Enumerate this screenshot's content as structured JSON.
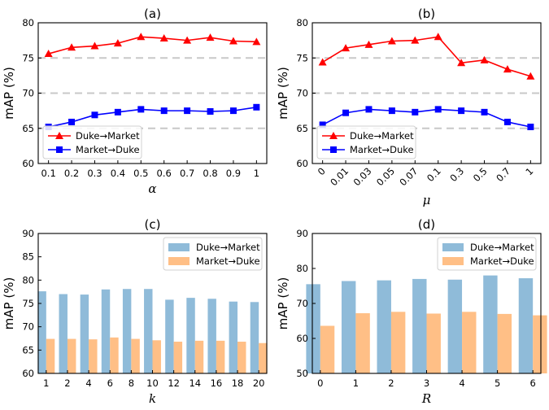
{
  "chart_data": [
    {
      "type": "line",
      "title": "(a)",
      "xlabel": "α",
      "ylabel": "mAP (%)",
      "categories": [
        "0.1",
        "0.2",
        "0.3",
        "0.4",
        "0.5",
        "0.6",
        "0.7",
        "0.8",
        "0.9",
        "1"
      ],
      "ylim": [
        60,
        80
      ],
      "yticks": [
        60,
        65,
        70,
        75,
        80
      ],
      "gridlines": [
        65,
        70,
        75
      ],
      "legend": "lower-left",
      "series": [
        {
          "name": "Duke→Market",
          "color": "#ff0000",
          "marker": "triangle",
          "values": [
            75.6,
            76.5,
            76.7,
            77.1,
            78.0,
            77.8,
            77.5,
            77.9,
            77.4,
            77.3
          ]
        },
        {
          "name": "Market→Duke",
          "color": "#0000ff",
          "marker": "square",
          "values": [
            65.2,
            65.9,
            66.9,
            67.3,
            67.7,
            67.5,
            67.5,
            67.4,
            67.5,
            68.0
          ]
        }
      ]
    },
    {
      "type": "line",
      "title": "(b)",
      "xlabel": "μ",
      "ylabel": "mAP (%)",
      "categories": [
        "0",
        "0.01",
        "0.03",
        "0.05",
        "0.07",
        "0.1",
        "0.3",
        "0.5",
        "0.7",
        "1"
      ],
      "xtick_rotation": 45,
      "ylim": [
        60,
        80
      ],
      "yticks": [
        60,
        65,
        70,
        75,
        80
      ],
      "gridlines": [
        65,
        70,
        75
      ],
      "legend": "lower-left",
      "series": [
        {
          "name": "Duke→Market",
          "color": "#ff0000",
          "marker": "triangle",
          "values": [
            74.4,
            76.4,
            76.9,
            77.4,
            77.5,
            78.0,
            74.3,
            74.7,
            73.4,
            72.4
          ]
        },
        {
          "name": "Market→Duke",
          "color": "#0000ff",
          "marker": "square",
          "values": [
            65.5,
            67.2,
            67.7,
            67.5,
            67.3,
            67.7,
            67.5,
            67.3,
            65.9,
            65.2
          ]
        }
      ]
    },
    {
      "type": "bar",
      "title": "(c)",
      "xlabel": "k",
      "ylabel": "mAP (%)",
      "categories": [
        "1",
        "2",
        "4",
        "6",
        "8",
        "10",
        "12",
        "14",
        "16",
        "18",
        "20"
      ],
      "ylim": [
        60,
        90
      ],
      "yticks": [
        60,
        65,
        70,
        75,
        80,
        85,
        90
      ],
      "legend": "top-right",
      "series": [
        {
          "name": "Duke→Market",
          "color": "#8fbbd9",
          "values": [
            77.6,
            77.0,
            76.9,
            78.0,
            78.1,
            78.1,
            75.8,
            76.2,
            76.0,
            75.4,
            75.3
          ]
        },
        {
          "name": "Market→Duke",
          "color": "#ffbf86",
          "values": [
            67.4,
            67.4,
            67.3,
            67.7,
            67.4,
            67.1,
            66.8,
            67.0,
            67.0,
            66.8,
            66.5
          ]
        }
      ]
    },
    {
      "type": "bar",
      "title": "(d)",
      "xlabel": "R",
      "ylabel": "mAP (%)",
      "categories": [
        "0",
        "1",
        "2",
        "3",
        "4",
        "5",
        "6"
      ],
      "ylim": [
        50,
        90
      ],
      "yticks": [
        50,
        60,
        70,
        80,
        90
      ],
      "legend": "top-right",
      "series": [
        {
          "name": "Duke→Market",
          "color": "#8fbbd9",
          "values": [
            75.5,
            76.4,
            76.6,
            77.0,
            76.8,
            78.0,
            77.2
          ]
        },
        {
          "name": "Market→Duke",
          "color": "#ffbf86",
          "values": [
            63.6,
            67.2,
            67.6,
            67.1,
            67.6,
            67.0,
            66.6
          ]
        }
      ]
    }
  ]
}
